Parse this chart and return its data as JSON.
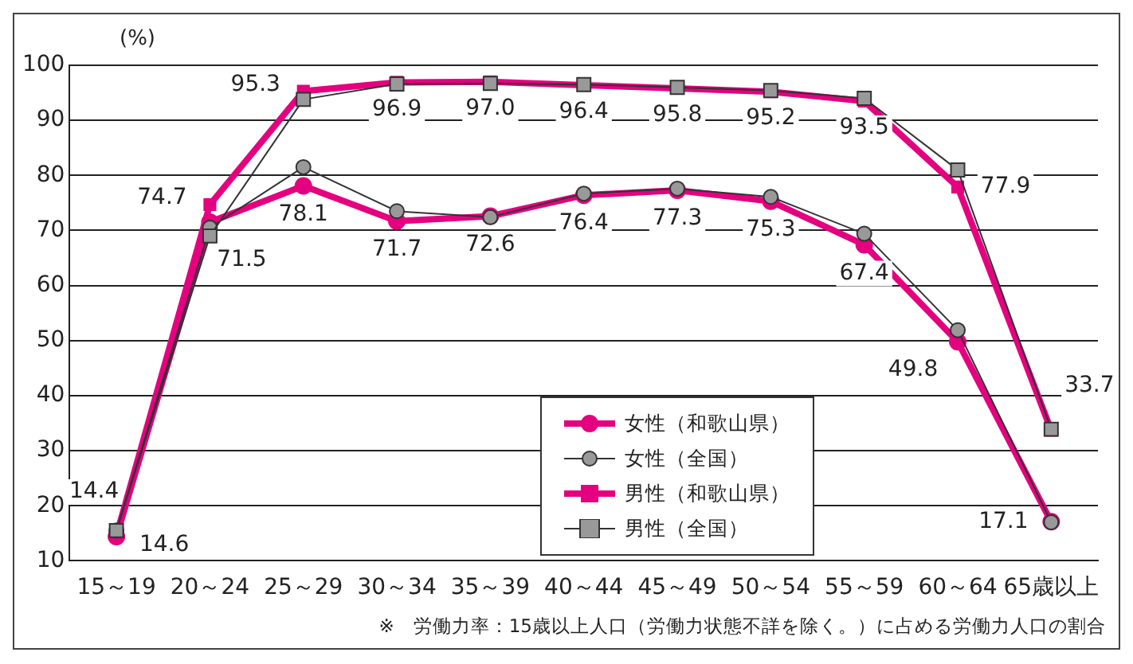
{
  "chart_data": {
    "type": "line",
    "ylabel": "(%)",
    "categories": [
      "15～19",
      "20～24",
      "25～29",
      "30～34",
      "35～39",
      "40～44",
      "45～49",
      "50～54",
      "55～59",
      "60～64",
      "65歳以上"
    ],
    "series": [
      {
        "name": "女性（和歌山県）",
        "color": "#e4007f",
        "marker": "circle",
        "values": [
          14.4,
          71.5,
          78.1,
          71.7,
          72.6,
          76.4,
          77.3,
          75.3,
          67.4,
          49.8,
          17.1
        ],
        "value_labels": [
          "14.4",
          "71.5",
          "78.1",
          "71.7",
          "72.6",
          "76.4",
          "77.3",
          "75.3",
          "67.4",
          "49.8",
          "17.1"
        ]
      },
      {
        "name": "女性（全国）",
        "color": "#333333",
        "marker": "circle",
        "values": [
          15.5,
          70.5,
          81.5,
          73.5,
          72.4,
          76.7,
          77.6,
          76.1,
          69.4,
          51.9,
          17.0
        ]
      },
      {
        "name": "男性（和歌山県）",
        "color": "#e4007f",
        "marker": "square",
        "values": [
          14.6,
          74.7,
          95.3,
          96.9,
          97.0,
          96.4,
          95.8,
          95.2,
          93.5,
          77.9,
          33.7
        ],
        "value_labels": [
          "14.6",
          "74.7",
          "95.3",
          "96.9",
          "97.0",
          "96.4",
          "95.8",
          "95.2",
          "93.5",
          "77.9",
          "33.7"
        ]
      },
      {
        "name": "男性（全国）",
        "color": "#333333",
        "marker": "square",
        "values": [
          15.5,
          69.0,
          93.8,
          96.6,
          96.7,
          96.5,
          96.0,
          95.4,
          94.0,
          81.0,
          33.9
        ]
      }
    ],
    "ylim": [
      10,
      100
    ],
    "yticks": [
      10,
      20,
      30,
      40,
      50,
      60,
      70,
      80,
      90,
      100
    ],
    "grid": "y",
    "legend": "bottom",
    "annotations": [
      "※　労働力率：15歳以上人口（労働力状態不詳を除く。）に占める労働力人口の割合"
    ]
  }
}
